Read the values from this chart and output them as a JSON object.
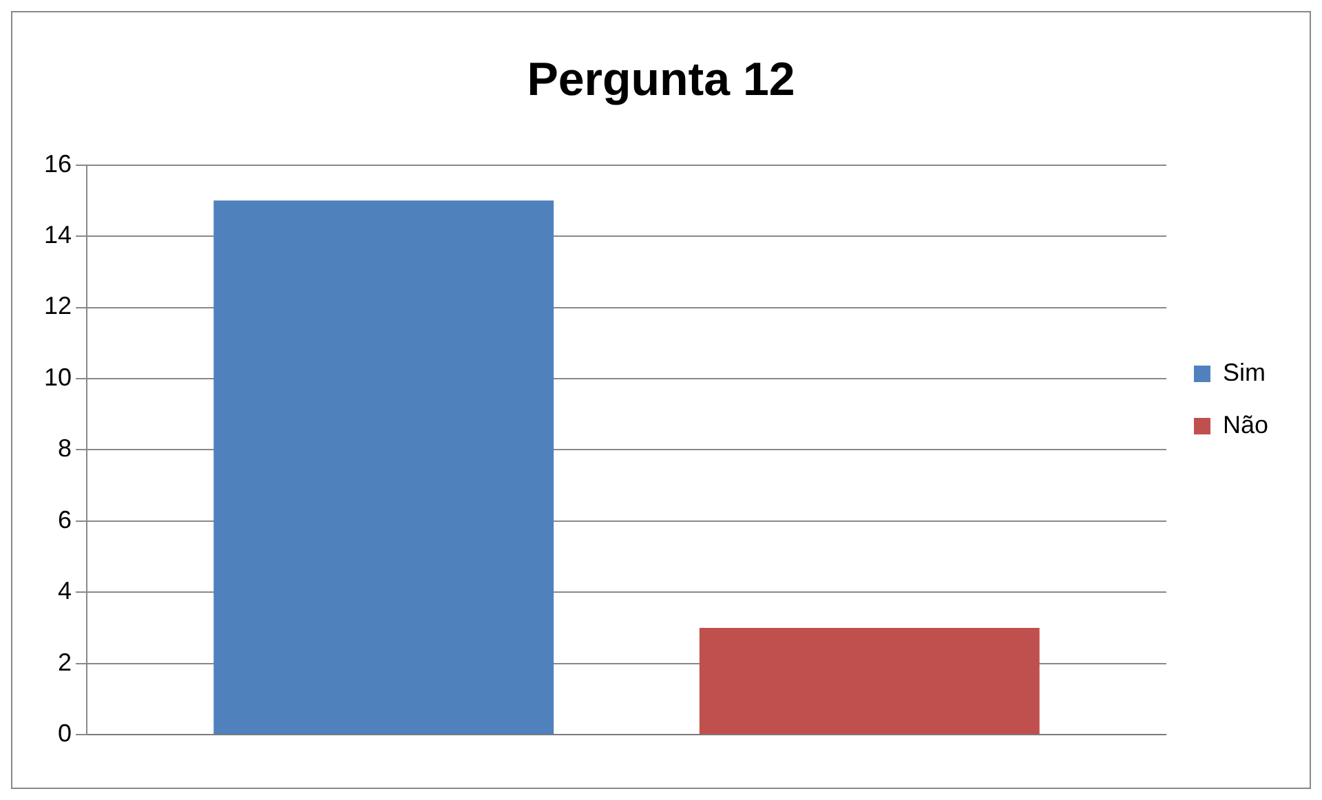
{
  "chart_data": {
    "type": "bar",
    "title": "Pergunta 12",
    "categories": [
      null
    ],
    "series": [
      {
        "name": "Sim",
        "color": "#4f81bd",
        "values": [
          15
        ]
      },
      {
        "name": "Não",
        "color": "#c0504d",
        "values": [
          3
        ]
      }
    ],
    "ylim": [
      0,
      16
    ],
    "yticks": [
      0,
      2,
      4,
      6,
      8,
      10,
      12,
      14,
      16
    ],
    "grid": "y",
    "legend": "right"
  }
}
